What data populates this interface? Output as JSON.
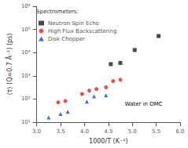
{
  "chart_data": {
    "type": "scatter",
    "title": "",
    "xlabel": "1000/T (K⁻¹)",
    "ylabel": "⟨τ⟩ (Q=0.7 Å⁻¹) (ps)",
    "log": "y",
    "grid": false,
    "legend": "upper left",
    "legend_title": "Spectrometers:",
    "annotations": [
      "Water in OMC"
    ],
    "xlim": [
      3.0,
      6.0
    ],
    "xticks": [
      {
        "value": 3.0,
        "label": "3.0"
      },
      {
        "value": 3.5,
        "label": "3.5"
      },
      {
        "value": 4.0,
        "label": "4.0"
      },
      {
        "value": 4.5,
        "label": "4.5"
      },
      {
        "value": 5.0,
        "label": "5.0"
      },
      {
        "value": 5.5,
        "label": "5.5"
      },
      {
        "value": 6.0,
        "label": "6.0"
      }
    ],
    "ylim": [
      10,
      1000000
    ],
    "yticks": [
      {
        "value": 10,
        "label": "10¹"
      },
      {
        "value": 100,
        "label": "10²"
      },
      {
        "value": 1000,
        "label": "10³"
      },
      {
        "value": 10000,
        "label": "10⁴"
      },
      {
        "value": 100000,
        "label": "10⁵"
      },
      {
        "value": 1000000,
        "label": "10⁶"
      }
    ],
    "series": [
      {
        "name": "Neutron Spin Echo",
        "color": "#1a1a1a",
        "marker": "square",
        "x": [
          4.55,
          4.75,
          5.05,
          5.55
        ],
        "values": [
          3200,
          3600,
          13000,
          52000
        ]
      },
      {
        "name": "High Flux Backscattering",
        "color": "#e8231a",
        "marker": "circle",
        "x": [
          3.45,
          3.6,
          3.95,
          4.1,
          4.25,
          4.45,
          4.6,
          4.75
        ],
        "values": [
          72,
          82,
          165,
          230,
          270,
          320,
          590,
          680
        ]
      },
      {
        "name": "Disk Chopper",
        "color": "#1a44cc",
        "marker": "triangle",
        "x": [
          3.25,
          3.5,
          3.65,
          4.05,
          4.2,
          4.45
        ],
        "values": [
          16,
          23,
          28,
          78,
          130,
          145
        ]
      }
    ]
  }
}
